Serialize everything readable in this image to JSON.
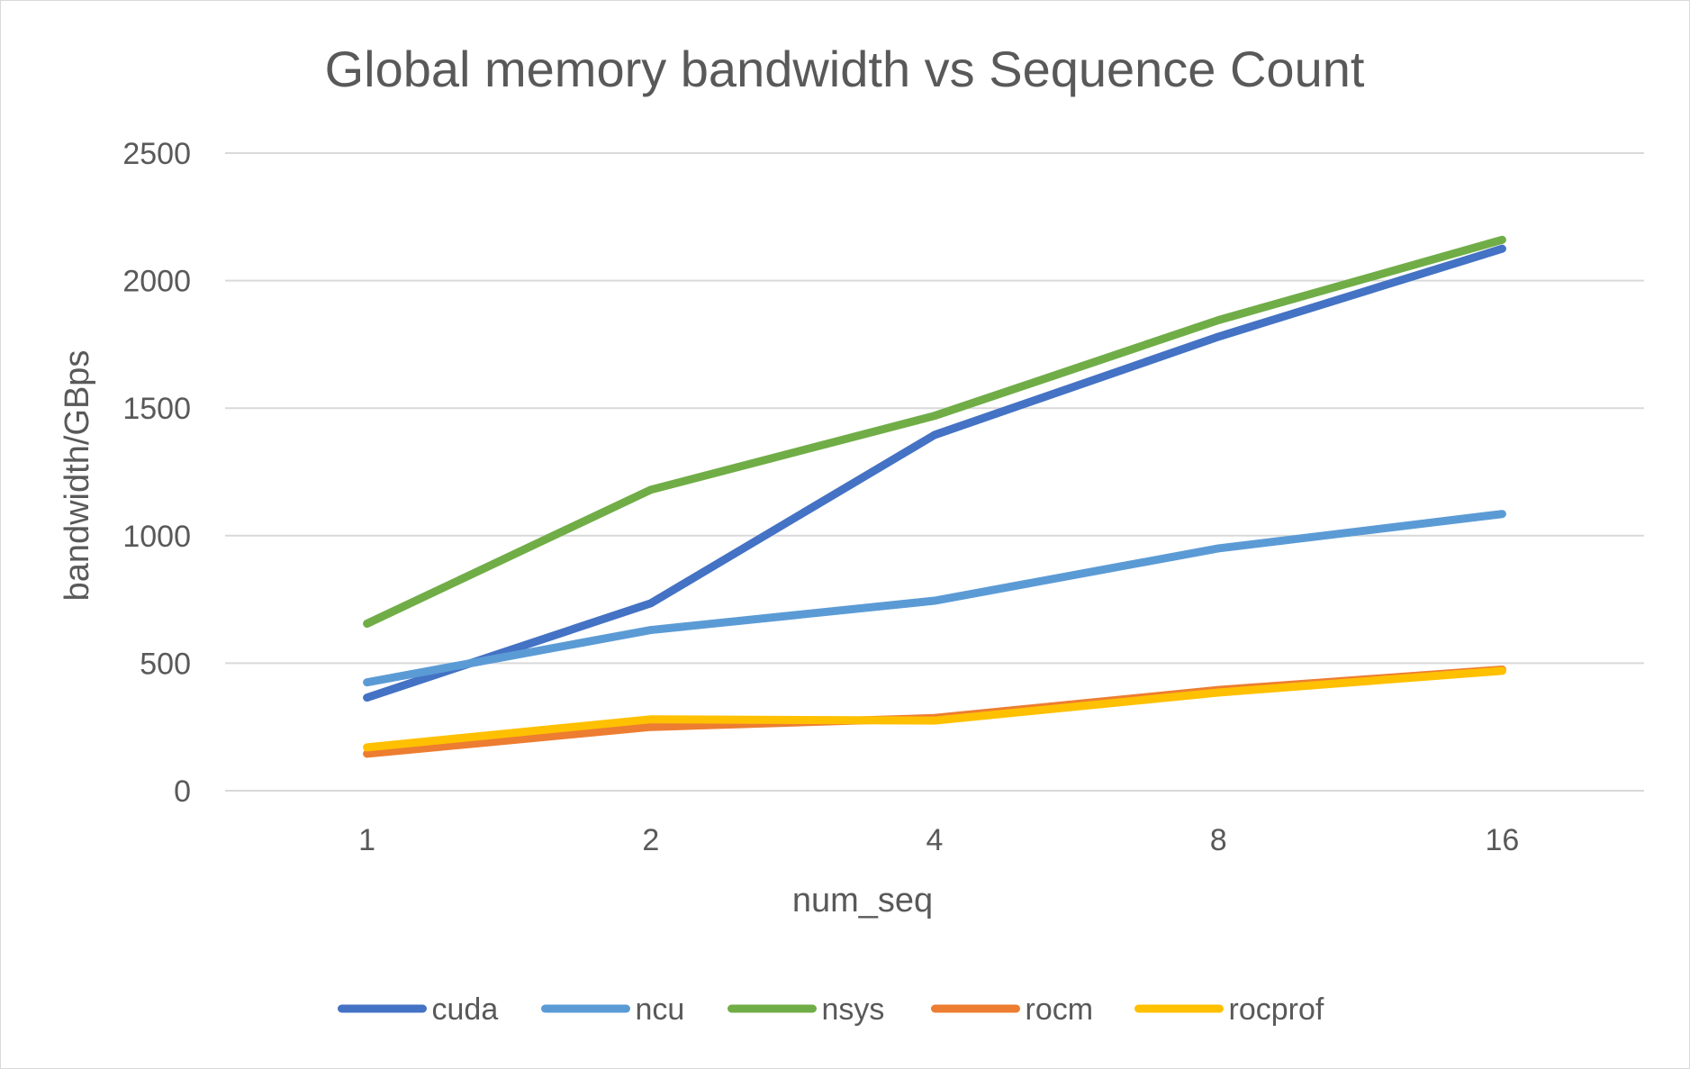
{
  "chart_data": {
    "type": "line",
    "title": "Global memory bandwidth vs Sequence Count",
    "xlabel": "num_seq",
    "ylabel": "bandwidth/GBps",
    "categories": [
      "1",
      "2",
      "4",
      "8",
      "16"
    ],
    "ylim": [
      0,
      2500
    ],
    "yticks": [
      "0",
      "500",
      "1000",
      "1500",
      "2000",
      "2500"
    ],
    "grid": true,
    "legend_position": "bottom",
    "series": [
      {
        "name": "cuda",
        "color": "#4472C4",
        "values": [
          365,
          735,
          1395,
          1780,
          2125
        ]
      },
      {
        "name": "ncu",
        "color": "#5B9BD5",
        "values": [
          425,
          630,
          745,
          950,
          1085
        ]
      },
      {
        "name": "nsys",
        "color": "#70AD47",
        "values": [
          655,
          1180,
          1470,
          1845,
          2160
        ]
      },
      {
        "name": "rocm",
        "color": "#ED7D31",
        "values": [
          145,
          250,
          285,
          395,
          475
        ]
      },
      {
        "name": "rocprof",
        "color": "#FFC000",
        "values": [
          170,
          280,
          275,
          385,
          470
        ]
      }
    ]
  }
}
